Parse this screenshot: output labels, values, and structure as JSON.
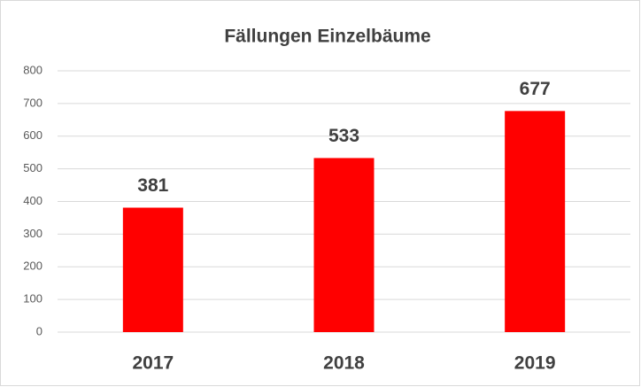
{
  "chart_data": {
    "type": "bar",
    "title": "Fällungen Einzelbäume",
    "categories": [
      "2017",
      "2018",
      "2019"
    ],
    "values": [
      381,
      533,
      677
    ],
    "color": "#ff0000",
    "ylim": [
      0,
      800
    ],
    "yticks": [
      0,
      100,
      200,
      300,
      400,
      500,
      600,
      700,
      800
    ],
    "grid": true,
    "data_labels": true
  }
}
